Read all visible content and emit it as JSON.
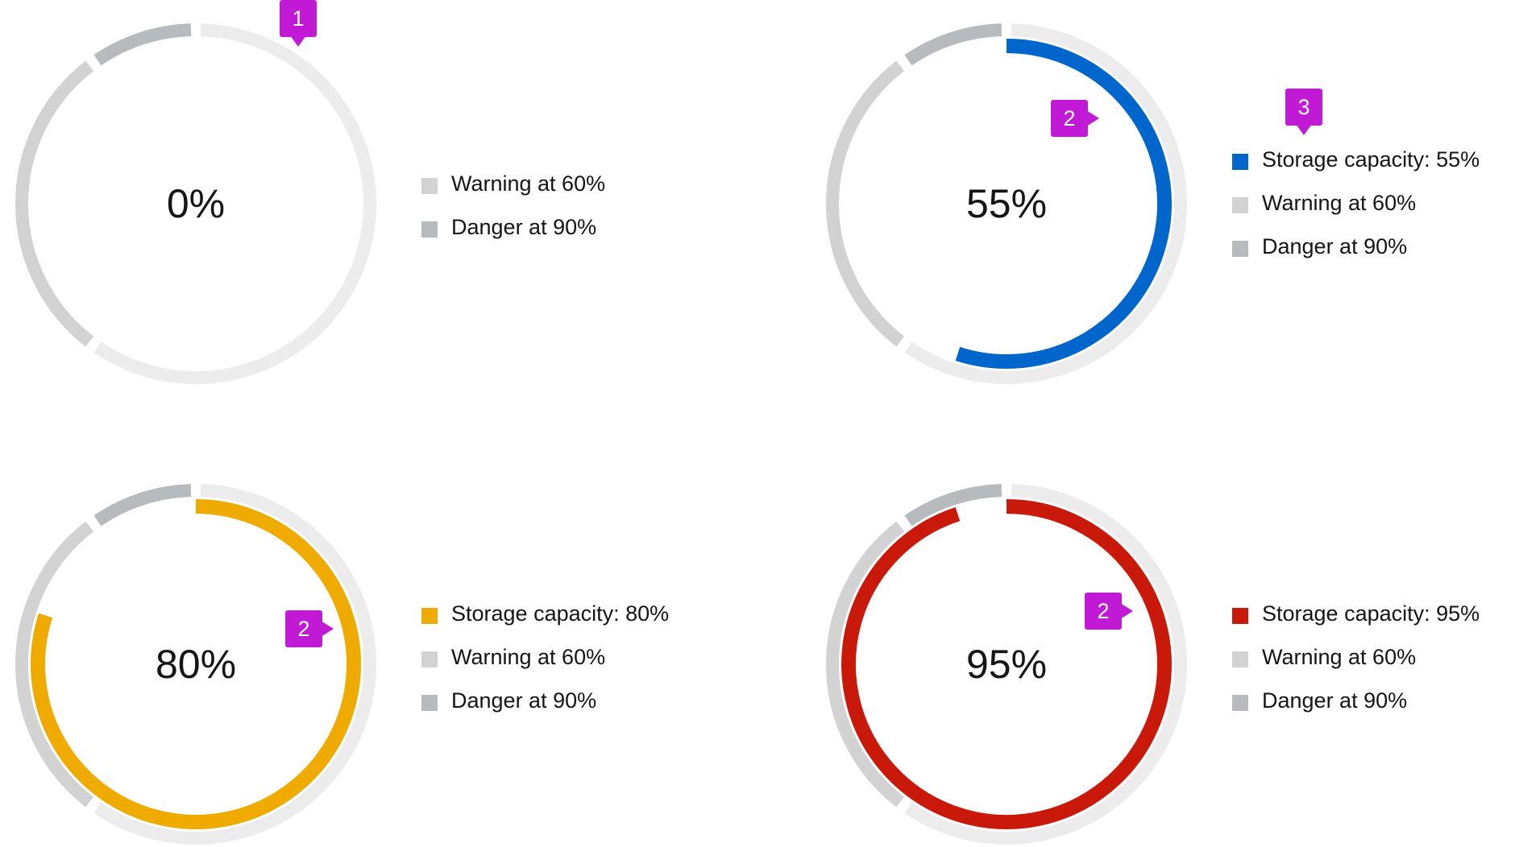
{
  "chart_data": [
    {
      "type": "donut",
      "value": 0,
      "label": "0%",
      "thresholds": [
        {
          "label": "Warning at 60%",
          "value": 60
        },
        {
          "label": "Danger at 90%",
          "value": 90
        }
      ],
      "legend": [
        {
          "label": "Warning at 60%",
          "color": "#d2d2d2"
        },
        {
          "label": "Danger at 90%",
          "color": "#b8bbbe"
        }
      ],
      "callout": "1"
    },
    {
      "type": "donut",
      "value": 55,
      "color": "#0066cc",
      "label": "55%",
      "thresholds": [
        {
          "label": "Warning at 60%",
          "value": 60
        },
        {
          "label": "Danger at 90%",
          "value": 90
        }
      ],
      "legend": [
        {
          "label": "Storage capacity: 55%",
          "color": "#0066cc"
        },
        {
          "label": "Warning at 60%",
          "color": "#d2d2d2"
        },
        {
          "label": "Danger at 90%",
          "color": "#b8bbbe"
        }
      ],
      "callouts": [
        "2",
        "3"
      ]
    },
    {
      "type": "donut",
      "value": 80,
      "color": "#f0ab00",
      "label": "80%",
      "thresholds": [
        {
          "label": "Warning at 60%",
          "value": 60
        },
        {
          "label": "Danger at 90%",
          "value": 90
        }
      ],
      "legend": [
        {
          "label": "Storage capacity: 80%",
          "color": "#f0ab00"
        },
        {
          "label": "Warning at 60%",
          "color": "#d2d2d2"
        },
        {
          "label": "Danger at 90%",
          "color": "#b8bbbe"
        }
      ],
      "callout": "2"
    },
    {
      "type": "donut",
      "value": 95,
      "color": "#c9190b",
      "label": "95%",
      "thresholds": [
        {
          "label": "Warning at 60%",
          "value": 60
        },
        {
          "label": "Danger at 90%",
          "value": 90
        }
      ],
      "legend": [
        {
          "label": "Storage capacity: 95%",
          "color": "#c9190b"
        },
        {
          "label": "Warning at 60%",
          "color": "#d2d2d2"
        },
        {
          "label": "Danger at 90%",
          "color": "#b8bbbe"
        }
      ],
      "callout": "2"
    }
  ],
  "colors": {
    "track": "#ececec",
    "warning": "#d2d2d2",
    "danger": "#b8bbbe",
    "callout": "#c11ad4"
  }
}
